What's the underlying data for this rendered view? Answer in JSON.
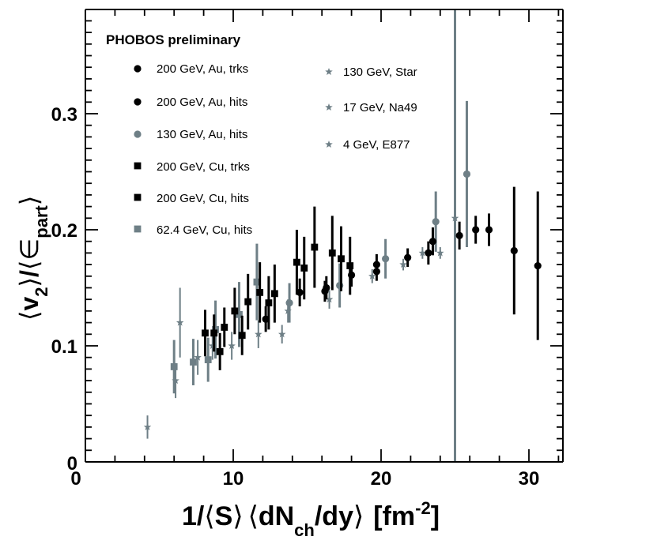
{
  "chart_data": {
    "type": "scatter",
    "title": "PHOBOS  preliminary",
    "xlabel": {
      "prefix": "1/",
      "open_angle": "⟨",
      "S": "S",
      "close_angle": "⟩",
      "dN": "dN",
      "ch": "ch",
      "dy": "/dy",
      "unit_open": "[fm",
      "unit_exp": "-2",
      "unit_close": "]"
    },
    "ylabel": {
      "open_angle": "⟨",
      "v": "v",
      "v_sub": "2",
      "close_angle": "⟩",
      "slash": "/",
      "eps": "∈",
      "eps_sub": "part"
    },
    "xlim": [
      0,
      32.5
    ],
    "ylim": [
      0,
      0.39
    ],
    "xticks": [
      0,
      10,
      20,
      30
    ],
    "xtick_labels": [
      "0",
      "10",
      "20",
      "30"
    ],
    "yticks": [
      0,
      0.1,
      0.2,
      0.3
    ],
    "ytick_labels": [
      "0",
      "0.1",
      "0.2",
      "0.3"
    ],
    "vertical_line_x": 25.0,
    "colors": {
      "black": "#000000",
      "grey": "#6e7f86",
      "background": "#ffffff"
    },
    "legend_column_1": [
      {
        "label": "200 GeV, Au, trks",
        "marker": "circle",
        "color": "black"
      },
      {
        "label": "200 GeV, Au, hits",
        "marker": "circle",
        "color": "black"
      },
      {
        "label": "130 GeV, Au, hits",
        "marker": "circle",
        "color": "grey"
      },
      {
        "label": "200 GeV, Cu, trks",
        "marker": "square",
        "color": "black"
      },
      {
        "label": "200 GeV, Cu, hits",
        "marker": "square",
        "color": "black"
      },
      {
        "label": "62.4 GeV, Cu, hits",
        "marker": "square",
        "color": "grey"
      }
    ],
    "legend_column_2": [
      {
        "label": "130 GeV, Star",
        "marker": "star",
        "color": "grey"
      },
      {
        "label": "17 GeV, Na49",
        "marker": "star",
        "color": "grey"
      },
      {
        "label": "4 GeV, E877",
        "marker": "star",
        "color": "grey"
      }
    ],
    "series": [
      {
        "name": "200 GeV, Au (trks + hits)",
        "marker": "circle",
        "color": "black",
        "points": [
          {
            "x": 14.5,
            "y": 0.146,
            "err": 0.012
          },
          {
            "x": 16.3,
            "y": 0.15,
            "err": 0.01
          },
          {
            "x": 18.0,
            "y": 0.161,
            "err": 0.01
          },
          {
            "x": 19.7,
            "y": 0.17,
            "err": 0.009
          },
          {
            "x": 21.8,
            "y": 0.176,
            "err": 0.008
          },
          {
            "x": 23.2,
            "y": 0.18,
            "err": 0.01
          },
          {
            "x": 23.5,
            "y": 0.19,
            "err": 0.012
          },
          {
            "x": 25.3,
            "y": 0.195,
            "err": 0.012
          },
          {
            "x": 26.4,
            "y": 0.2,
            "err": 0.012
          },
          {
            "x": 27.3,
            "y": 0.2,
            "err": 0.014
          },
          {
            "x": 29.0,
            "y": 0.182,
            "err": 0.055
          },
          {
            "x": 30.6,
            "y": 0.169,
            "err": 0.064
          },
          {
            "x": 12.2,
            "y": 0.123,
            "err": 0.011
          },
          {
            "x": 16.2,
            "y": 0.147,
            "err": 0.009
          },
          {
            "x": 19.7,
            "y": 0.164,
            "err": 0.008
          }
        ]
      },
      {
        "name": "130 GeV, Au, hits",
        "marker": "circle",
        "color": "grey",
        "points": [
          {
            "x": 13.8,
            "y": 0.137,
            "err": 0.017
          },
          {
            "x": 17.2,
            "y": 0.152,
            "err": 0.019
          },
          {
            "x": 20.3,
            "y": 0.175,
            "err": 0.017
          },
          {
            "x": 23.7,
            "y": 0.207,
            "err": 0.026
          },
          {
            "x": 25.8,
            "y": 0.248,
            "err": 0.063
          }
        ]
      },
      {
        "name": "200 GeV, Cu (trks + hits)",
        "marker": "square",
        "color": "black",
        "points": [
          {
            "x": 8.1,
            "y": 0.111,
            "err": 0.02
          },
          {
            "x": 8.7,
            "y": 0.111,
            "err": 0.016
          },
          {
            "x": 9.1,
            "y": 0.095,
            "err": 0.016
          },
          {
            "x": 9.4,
            "y": 0.116,
            "err": 0.017
          },
          {
            "x": 10.1,
            "y": 0.13,
            "err": 0.02
          },
          {
            "x": 10.6,
            "y": 0.109,
            "err": 0.017
          },
          {
            "x": 11.0,
            "y": 0.138,
            "err": 0.024
          },
          {
            "x": 11.8,
            "y": 0.146,
            "err": 0.026
          },
          {
            "x": 12.4,
            "y": 0.137,
            "err": 0.023
          },
          {
            "x": 12.8,
            "y": 0.145,
            "err": 0.025
          },
          {
            "x": 14.3,
            "y": 0.172,
            "err": 0.028
          },
          {
            "x": 14.8,
            "y": 0.167,
            "err": 0.027
          },
          {
            "x": 15.5,
            "y": 0.185,
            "err": 0.035
          },
          {
            "x": 16.7,
            "y": 0.18,
            "err": 0.032
          },
          {
            "x": 17.3,
            "y": 0.175,
            "err": 0.028
          },
          {
            "x": 17.9,
            "y": 0.169,
            "err": 0.025
          }
        ]
      },
      {
        "name": "62.4 GeV, Cu, hits",
        "marker": "square",
        "color": "grey",
        "points": [
          {
            "x": 6.0,
            "y": 0.082,
            "err": 0.023
          },
          {
            "x": 7.3,
            "y": 0.086,
            "err": 0.02
          },
          {
            "x": 8.8,
            "y": 0.114,
            "err": 0.025
          },
          {
            "x": 10.4,
            "y": 0.127,
            "err": 0.028
          },
          {
            "x": 11.6,
            "y": 0.155,
            "err": 0.033
          },
          {
            "x": 8.3,
            "y": 0.088,
            "err": 0.019
          }
        ]
      },
      {
        "name": "Star / Na49 / E877",
        "marker": "star",
        "color": "grey",
        "points": [
          {
            "x": 4.2,
            "y": 0.03,
            "err": 0.01
          },
          {
            "x": 6.1,
            "y": 0.07,
            "err": 0.015
          },
          {
            "x": 6.4,
            "y": 0.12,
            "err": 0.03
          },
          {
            "x": 7.6,
            "y": 0.09,
            "err": 0.015
          },
          {
            "x": 8.6,
            "y": 0.1,
            "err": 0.012
          },
          {
            "x": 9.9,
            "y": 0.1,
            "err": 0.012
          },
          {
            "x": 11.7,
            "y": 0.11,
            "err": 0.012
          },
          {
            "x": 13.3,
            "y": 0.11,
            "err": 0.008
          },
          {
            "x": 13.7,
            "y": 0.13,
            "err": 0.01
          },
          {
            "x": 16.5,
            "y": 0.14,
            "err": 0.008
          },
          {
            "x": 19.4,
            "y": 0.16,
            "err": 0.006
          },
          {
            "x": 21.5,
            "y": 0.17,
            "err": 0.005
          },
          {
            "x": 22.8,
            "y": 0.18,
            "err": 0.005
          },
          {
            "x": 24.0,
            "y": 0.18,
            "err": 0.005
          },
          {
            "x": 25.0,
            "y": 0.21,
            "err": 0.008
          }
        ]
      }
    ]
  }
}
